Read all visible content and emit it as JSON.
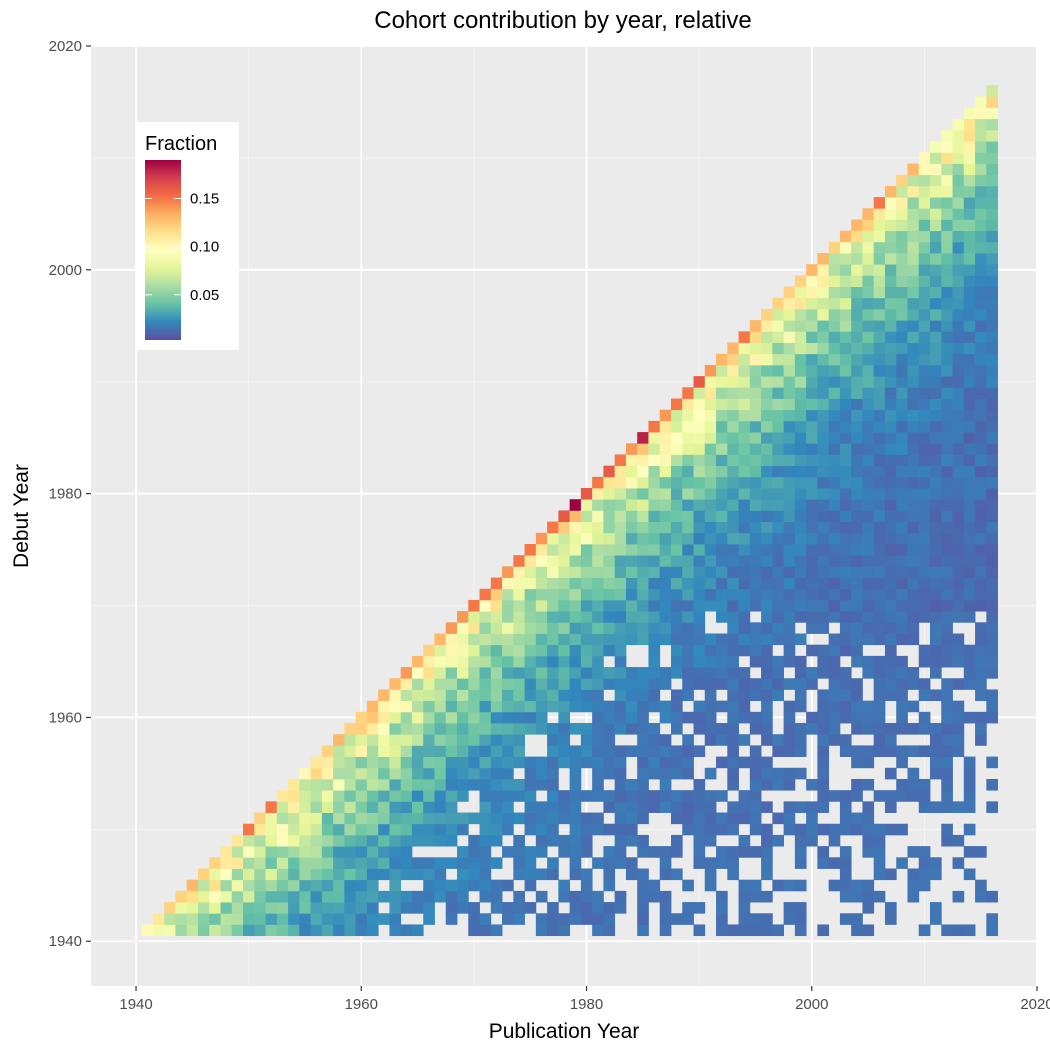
{
  "chart_data": {
    "type": "heatmap",
    "title": "Cohort contribution by year, relative",
    "xlabel": "Publication Year",
    "ylabel": "Debut Year",
    "xlim": [
      1936,
      2020
    ],
    "ylim": [
      1936,
      2020
    ],
    "x_ticks": [
      1940,
      1960,
      1980,
      2000,
      2020
    ],
    "y_ticks": [
      1940,
      1960,
      1980,
      2000,
      2020
    ],
    "grid": true,
    "legend": {
      "title": "Fraction",
      "placement": "top-left",
      "range": [
        0.003,
        0.19
      ],
      "ticks": [
        0.05,
        0.1,
        0.15
      ],
      "tick_labels": [
        "0.05",
        "0.10",
        "0.15"
      ],
      "palette": [
        "#5E4FA2",
        "#3288BD",
        "#66C2A5",
        "#ABDDA4",
        "#E6F598",
        "#FFFFBF",
        "#FEE08B",
        "#FDAE61",
        "#F46D43",
        "#D53E4F",
        "#9E0142"
      ]
    },
    "x_range": [
      1941,
      2016
    ],
    "y_range": [
      1941,
      2016
    ],
    "cell_rule": "Each cell is a (publication year, debut year) pair with debut year <= publication year. The diagonal (debut year = publication year) holds the largest fractions, about 0.10-0.19; values fall off with distance below the diagonal toward about 0.003-0.01 in the lower right; cells with no data are left blank.",
    "diagonal_values": [
      {
        "year": 1941,
        "value": 0.1
      },
      {
        "year": 1942,
        "value": 0.11
      },
      {
        "year": 1943,
        "value": 0.12
      },
      {
        "year": 1944,
        "value": 0.12
      },
      {
        "year": 1945,
        "value": 0.13
      },
      {
        "year": 1946,
        "value": 0.12
      },
      {
        "year": 1947,
        "value": 0.12
      },
      {
        "year": 1948,
        "value": 0.11
      },
      {
        "year": 1949,
        "value": 0.11
      },
      {
        "year": 1950,
        "value": 0.15
      },
      {
        "year": 1951,
        "value": 0.12
      },
      {
        "year": 1952,
        "value": 0.15
      },
      {
        "year": 1953,
        "value": 0.11
      },
      {
        "year": 1954,
        "value": 0.11
      },
      {
        "year": 1955,
        "value": 0.1
      },
      {
        "year": 1956,
        "value": 0.11
      },
      {
        "year": 1957,
        "value": 0.12
      },
      {
        "year": 1958,
        "value": 0.13
      },
      {
        "year": 1959,
        "value": 0.12
      },
      {
        "year": 1960,
        "value": 0.12
      },
      {
        "year": 1961,
        "value": 0.13
      },
      {
        "year": 1962,
        "value": 0.13
      },
      {
        "year": 1963,
        "value": 0.13
      },
      {
        "year": 1964,
        "value": 0.14
      },
      {
        "year": 1965,
        "value": 0.13
      },
      {
        "year": 1966,
        "value": 0.12
      },
      {
        "year": 1967,
        "value": 0.13
      },
      {
        "year": 1968,
        "value": 0.14
      },
      {
        "year": 1969,
        "value": 0.14
      },
      {
        "year": 1970,
        "value": 0.15
      },
      {
        "year": 1971,
        "value": 0.15
      },
      {
        "year": 1972,
        "value": 0.15
      },
      {
        "year": 1973,
        "value": 0.14
      },
      {
        "year": 1974,
        "value": 0.15
      },
      {
        "year": 1975,
        "value": 0.15
      },
      {
        "year": 1976,
        "value": 0.14
      },
      {
        "year": 1977,
        "value": 0.15
      },
      {
        "year": 1978,
        "value": 0.16
      },
      {
        "year": 1979,
        "value": 0.19
      },
      {
        "year": 1980,
        "value": 0.16
      },
      {
        "year": 1981,
        "value": 0.15
      },
      {
        "year": 1982,
        "value": 0.16
      },
      {
        "year": 1983,
        "value": 0.15
      },
      {
        "year": 1984,
        "value": 0.14
      },
      {
        "year": 1985,
        "value": 0.18
      },
      {
        "year": 1986,
        "value": 0.15
      },
      {
        "year": 1987,
        "value": 0.14
      },
      {
        "year": 1988,
        "value": 0.15
      },
      {
        "year": 1989,
        "value": 0.15
      },
      {
        "year": 1990,
        "value": 0.16
      },
      {
        "year": 1991,
        "value": 0.14
      },
      {
        "year": 1992,
        "value": 0.13
      },
      {
        "year": 1993,
        "value": 0.13
      },
      {
        "year": 1994,
        "value": 0.15
      },
      {
        "year": 1995,
        "value": 0.13
      },
      {
        "year": 1996,
        "value": 0.12
      },
      {
        "year": 1997,
        "value": 0.12
      },
      {
        "year": 1998,
        "value": 0.12
      },
      {
        "year": 1999,
        "value": 0.12
      },
      {
        "year": 2000,
        "value": 0.13
      },
      {
        "year": 2001,
        "value": 0.13
      },
      {
        "year": 2002,
        "value": 0.12
      },
      {
        "year": 2003,
        "value": 0.13
      },
      {
        "year": 2004,
        "value": 0.13
      },
      {
        "year": 2005,
        "value": 0.13
      },
      {
        "year": 2006,
        "value": 0.15
      },
      {
        "year": 2007,
        "value": 0.13
      },
      {
        "year": 2008,
        "value": 0.12
      },
      {
        "year": 2009,
        "value": 0.13
      },
      {
        "year": 2010,
        "value": 0.1
      },
      {
        "year": 2011,
        "value": 0.09
      },
      {
        "year": 2012,
        "value": 0.09
      },
      {
        "year": 2013,
        "value": 0.09
      },
      {
        "year": 2014,
        "value": 0.09
      },
      {
        "year": 2015,
        "value": 0.09
      },
      {
        "year": 2016,
        "value": 0.07
      }
    ]
  }
}
